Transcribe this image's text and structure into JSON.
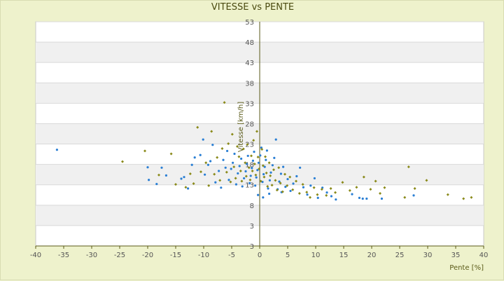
{
  "chart_data": {
    "type": "scatter",
    "title": "VITESSE vs PENTE",
    "xlabel": "Pente [%]",
    "ylabel": "Vitesse [km/h]",
    "xlim": [
      -40,
      40
    ],
    "ylim": [
      3,
      53
    ],
    "y_axis_at_x": 0,
    "xticks": [
      "-40",
      "-35",
      "-30",
      "-25",
      "-20",
      "-15",
      "-10",
      "-5",
      "0",
      "5",
      "10",
      "15",
      "20",
      "25",
      "30",
      "35",
      "40"
    ],
    "yticks": [
      "3",
      "3",
      "8",
      "13",
      "18",
      "23",
      "28",
      "33",
      "38",
      "43",
      "48",
      "53"
    ],
    "grid": "alternating horizontal bands",
    "colors": {
      "series_a": "#2a7fd4",
      "series_b": "#8a8a1a",
      "axis": "#5a5a18",
      "band": "#f0f0f0"
    },
    "series": [
      {
        "color": "#2a7fd4",
        "points": [
          [
            -36.2,
            21.6
          ],
          [
            -20,
            17.3
          ],
          [
            -19.8,
            14.2
          ],
          [
            -18.4,
            13.2
          ],
          [
            -17.5,
            17.2
          ],
          [
            -16.7,
            15.3
          ],
          [
            -14,
            14.5
          ],
          [
            -13.5,
            14.9
          ],
          [
            -12.8,
            12.1
          ],
          [
            -12.1,
            17.9
          ],
          [
            -11.6,
            19.7
          ],
          [
            -10.6,
            20.3
          ],
          [
            -10.1,
            24.1
          ],
          [
            -9.8,
            15.5
          ],
          [
            -9.2,
            17.9
          ],
          [
            -8.8,
            18.8
          ],
          [
            -8.4,
            22.8
          ],
          [
            -7.9,
            13.6
          ],
          [
            -7.3,
            16.4
          ],
          [
            -6.9,
            12.3
          ],
          [
            -6.5,
            19.1
          ],
          [
            -6.1,
            17.2
          ],
          [
            -5.8,
            21.3
          ],
          [
            -5.5,
            14.2
          ],
          [
            -5.1,
            16.9
          ],
          [
            -4.8,
            18.4
          ],
          [
            -4.5,
            20.6
          ],
          [
            -4.2,
            13.1
          ],
          [
            -3.9,
            15.8
          ],
          [
            -3.6,
            17.6
          ],
          [
            -3.3,
            19.4
          ],
          [
            -3.1,
            12.6
          ],
          [
            -2.8,
            14.6
          ],
          [
            -2.5,
            16.3
          ],
          [
            -2.3,
            18.1
          ],
          [
            -2.1,
            20.1
          ],
          [
            -1.8,
            13.4
          ],
          [
            -1.6,
            15.2
          ],
          [
            -1.4,
            17.1
          ],
          [
            -1.2,
            18.9
          ],
          [
            -1,
            21.1
          ],
          [
            -0.8,
            12.8
          ],
          [
            -0.6,
            14.8
          ],
          [
            -0.4,
            16.6
          ],
          [
            -0.2,
            18.4
          ],
          [
            0.1,
            20.2
          ],
          [
            0.3,
            22.1
          ],
          [
            0.5,
            13.7
          ],
          [
            0.7,
            15.6
          ],
          [
            0.9,
            17.4
          ],
          [
            1.1,
            19.1
          ],
          [
            1.3,
            21.4
          ],
          [
            1.5,
            12.1
          ],
          [
            1.8,
            14.1
          ],
          [
            2,
            16
          ],
          [
            2.3,
            17.8
          ],
          [
            2.6,
            19.6
          ],
          [
            2.9,
            24.1
          ],
          [
            3.2,
            11.9
          ],
          [
            3.5,
            13.8
          ],
          [
            3.8,
            15.7
          ],
          [
            4.2,
            17.4
          ],
          [
            4.6,
            12.5
          ],
          [
            5,
            14.4
          ],
          [
            5.5,
            11.5
          ],
          [
            6,
            13.3
          ],
          [
            6.6,
            15.1
          ],
          [
            7.2,
            17.2
          ],
          [
            7.8,
            12.4
          ],
          [
            8.5,
            10.6
          ],
          [
            9.1,
            12.8
          ],
          [
            9.8,
            14.6
          ],
          [
            10.4,
            9.8
          ],
          [
            11.2,
            12.3
          ],
          [
            12,
            11.1
          ],
          [
            12.8,
            10.2
          ],
          [
            13.6,
            9.4
          ],
          [
            16.5,
            10.7
          ],
          [
            17.8,
            9.8
          ],
          [
            18.4,
            9.6
          ],
          [
            19.1,
            9.6
          ],
          [
            21.8,
            9.6
          ],
          [
            27.5,
            10.4
          ],
          [
            -0.3,
            10.5
          ],
          [
            0.6,
            9.9
          ],
          [
            1.7,
            10.8
          ],
          [
            3.9,
            11.2
          ]
        ]
      },
      {
        "color": "#8a8a1a",
        "points": [
          [
            -24.5,
            18.7
          ],
          [
            -20.5,
            21.3
          ],
          [
            -18,
            15.4
          ],
          [
            -15.8,
            20.6
          ],
          [
            -15,
            13.1
          ],
          [
            -13.2,
            12.4
          ],
          [
            -12.4,
            15.7
          ],
          [
            -11.8,
            13.3
          ],
          [
            -11.1,
            27.1
          ],
          [
            -10.5,
            16.2
          ],
          [
            -9.6,
            18.4
          ],
          [
            -9.1,
            12.8
          ],
          [
            -8.6,
            26.1
          ],
          [
            -8.1,
            15.6
          ],
          [
            -7.6,
            19.7
          ],
          [
            -7.1,
            14.1
          ],
          [
            -6.7,
            21.9
          ],
          [
            -6.3,
            33.2
          ],
          [
            -5.9,
            16.1
          ],
          [
            -5.6,
            23.1
          ],
          [
            -5.2,
            13.7
          ],
          [
            -4.9,
            25.4
          ],
          [
            -4.6,
            17.4
          ],
          [
            -4.3,
            14.6
          ],
          [
            -4,
            22.4
          ],
          [
            -3.7,
            19.9
          ],
          [
            -3.4,
            16.4
          ],
          [
            -3.2,
            13.9
          ],
          [
            -2.9,
            21.8
          ],
          [
            -2.6,
            18.4
          ],
          [
            -2.4,
            15.1
          ],
          [
            -2.2,
            22.9
          ],
          [
            -1.9,
            17.2
          ],
          [
            -1.7,
            14.2
          ],
          [
            -1.5,
            20.1
          ],
          [
            -1.3,
            16.4
          ],
          [
            -1.1,
            23.9
          ],
          [
            -0.9,
            18.1
          ],
          [
            -0.7,
            15.4
          ],
          [
            -0.5,
            26.1
          ],
          [
            -0.3,
            19.8
          ],
          [
            -0.1,
            16.9
          ],
          [
            0.2,
            13.9
          ],
          [
            0.4,
            21.7
          ],
          [
            0.6,
            17.7
          ],
          [
            0.8,
            14.9
          ],
          [
            1,
            19.9
          ],
          [
            1.2,
            15.9
          ],
          [
            1.4,
            12.6
          ],
          [
            1.7,
            18.4
          ],
          [
            1.9,
            15.2
          ],
          [
            2.2,
            12.9
          ],
          [
            2.5,
            16.7
          ],
          [
            2.8,
            14.1
          ],
          [
            3.1,
            11.7
          ],
          [
            3.4,
            17.2
          ],
          [
            3.7,
            13.4
          ],
          [
            4.1,
            11.3
          ],
          [
            4.5,
            15.6
          ],
          [
            4.9,
            12.8
          ],
          [
            5.4,
            14.9
          ],
          [
            5.9,
            11.8
          ],
          [
            6.5,
            13.9
          ],
          [
            7.1,
            10.9
          ],
          [
            7.7,
            13.1
          ],
          [
            8.4,
            11.2
          ],
          [
            9,
            9.9
          ],
          [
            9.7,
            12.3
          ],
          [
            10.3,
            10.6
          ],
          [
            11.1,
            11.9
          ],
          [
            11.9,
            10.4
          ],
          [
            12.7,
            12.1
          ],
          [
            13.5,
            11.1
          ],
          [
            14.8,
            13.6
          ],
          [
            16.1,
            11.6
          ],
          [
            17.3,
            12.4
          ],
          [
            18.6,
            14.9
          ],
          [
            19.8,
            11.9
          ],
          [
            20.7,
            13.9
          ],
          [
            21.5,
            10.9
          ],
          [
            22.3,
            12.3
          ],
          [
            25.9,
            9.9
          ],
          [
            26.6,
            17.4
          ],
          [
            27.7,
            12.1
          ],
          [
            29.8,
            14.1
          ],
          [
            33.6,
            10.6
          ],
          [
            36.4,
            9.6
          ],
          [
            37.8,
            9.9
          ]
        ]
      }
    ]
  }
}
